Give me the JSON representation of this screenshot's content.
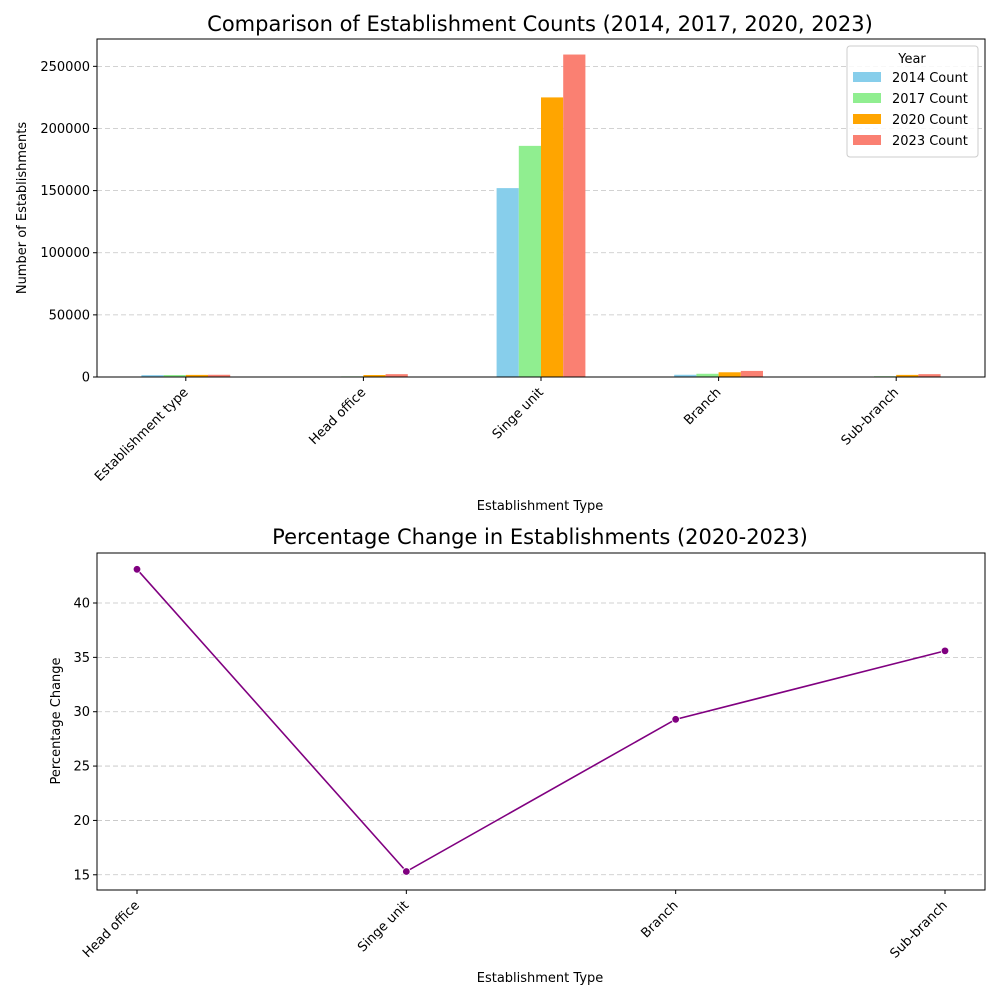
{
  "chart_data": [
    {
      "type": "bar",
      "title": "Comparison of Establishment Counts (2014, 2017, 2020, 2023)",
      "xlabel": "Establishment Type",
      "ylabel": "Number of Establishments",
      "categories": [
        "Establishment type",
        "Head office",
        "Singe unit",
        "Branch",
        "Sub-branch"
      ],
      "ylim": [
        0,
        272000
      ],
      "yticks": [
        0,
        50000,
        100000,
        150000,
        200000,
        250000
      ],
      "grid": "y",
      "legend": {
        "title": "Year",
        "position": "top-right"
      },
      "series": [
        {
          "name": "2014 Count",
          "color": "#87ceeb",
          "values": [
            1500,
            300,
            152000,
            1800,
            300
          ]
        },
        {
          "name": "2017 Count",
          "color": "#90ee90",
          "values": [
            1600,
            500,
            186000,
            2600,
            600
          ]
        },
        {
          "name": "2020 Count",
          "color": "#ffa500",
          "values": [
            1700,
            1600,
            225000,
            3800,
            1700
          ]
        },
        {
          "name": "2023 Count",
          "color": "#fa8072",
          "values": [
            1800,
            2300,
            259500,
            4900,
            2300
          ]
        }
      ]
    },
    {
      "type": "line",
      "title": "Percentage Change in Establishments (2020-2023)",
      "xlabel": "Establishment Type",
      "ylabel": "Percentage Change",
      "categories": [
        "Head office",
        "Singe unit",
        "Branch",
        "Sub-branch"
      ],
      "values": [
        43.1,
        15.3,
        29.3,
        35.6
      ],
      "ylim": [
        13.6,
        44.6
      ],
      "yticks": [
        15,
        20,
        25,
        30,
        35,
        40
      ],
      "grid": "y",
      "color": "#800080"
    }
  ]
}
